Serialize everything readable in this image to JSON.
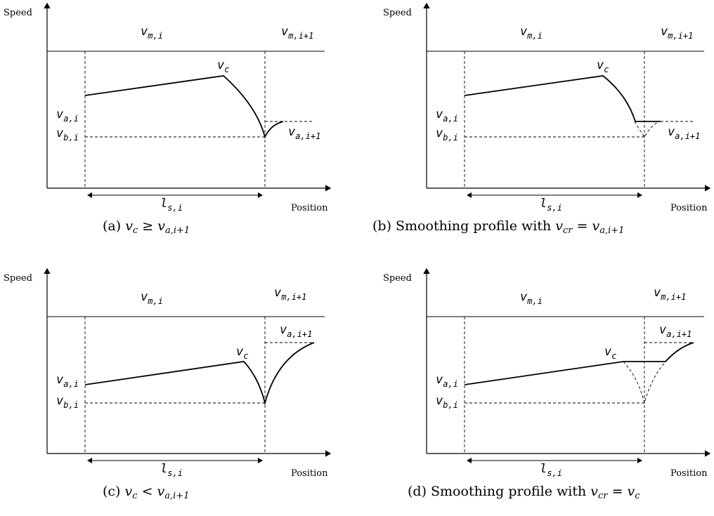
{
  "axis_labels": {
    "y": "Speed",
    "x": "Position"
  },
  "panels": [
    {
      "id": "a",
      "caption": {
        "prefix": "(a) ",
        "math": "v_c ≥ v_{a,i+1}"
      }
    },
    {
      "id": "b",
      "caption": {
        "prefix": "(b) Smoothing profile with ",
        "math": "v_{cr} = v_{a,i+1}"
      }
    },
    {
      "id": "c",
      "caption": {
        "prefix": "(c) ",
        "math": "v_c < v_{a,i+1}"
      }
    },
    {
      "id": "d",
      "caption": {
        "prefix": "(d) Smoothing profile with ",
        "math": "v_{cr} = v_c"
      }
    }
  ],
  "labels": {
    "v_m_i": {
      "base": "v",
      "sub": "m,i"
    },
    "v_m_i1": {
      "base": "v",
      "sub": "m,i+1"
    },
    "v_a_i": {
      "base": "v",
      "sub": "a,i"
    },
    "v_b_i": {
      "base": "v",
      "sub": "b,i"
    },
    "v_a_i1": {
      "base": "v",
      "sub": "a,i+1"
    },
    "v_c": {
      "base": "v",
      "sub": "c"
    },
    "l_s_i": {
      "base": "l",
      "sub": "s,i"
    }
  }
}
